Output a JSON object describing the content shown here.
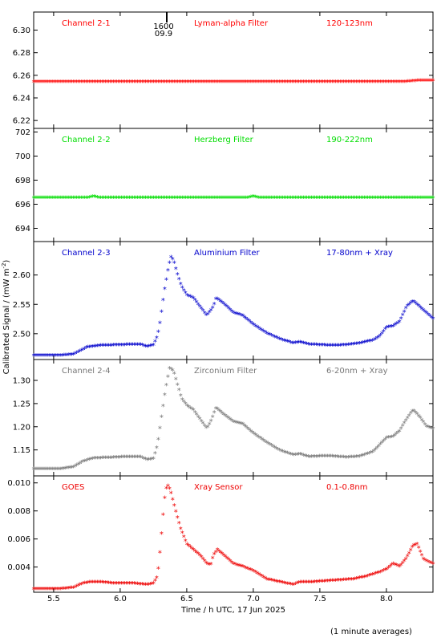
{
  "chart_data": {
    "type": "scatter",
    "x_range": [
      5.35,
      8.35
    ],
    "x_ticks": [
      "5.5",
      "6.0",
      "6.5",
      "7.0",
      "7.5",
      "8.0"
    ],
    "xlabel": "Time / h UTC, 17 Jun 2025",
    "ylabel": "Calibrated Signal / (mW m",
    "ylabel_sup": "-2",
    "ylabel_end": ")",
    "marker_label_top": "1600",
    "marker_label_bottom": "09.9",
    "marker_x": 6.35,
    "footnote": "(1 minute averages)",
    "panels": [
      {
        "channel": "Channel 2-1",
        "filter": "Lyman-alpha Filter",
        "band": "120-123nm",
        "color": "#ff0000",
        "ylim": [
          6.213,
          6.316
        ],
        "yticks": [
          "6.22",
          "6.24",
          "6.26",
          "6.28",
          "6.30"
        ],
        "series": {
          "name": "",
          "points": [
            [
              5.35,
              6.254
            ],
            [
              5.8,
              6.254
            ],
            [
              6.3,
              6.254
            ],
            [
              6.8,
              6.254
            ],
            [
              7.3,
              6.254
            ],
            [
              7.8,
              6.254
            ],
            [
              8.15,
              6.254
            ],
            [
              8.25,
              6.255
            ],
            [
              8.35,
              6.255
            ]
          ]
        }
      },
      {
        "channel": "Channel 2-2",
        "filter": "Herzberg Filter",
        "band": "190-222nm",
        "color": "#00dd00",
        "ylim": [
          692.9,
          702.3
        ],
        "yticks": [
          "694",
          "696",
          "698",
          "700",
          "702"
        ],
        "series": {
          "name": "",
          "points": [
            [
              5.35,
              696.5
            ],
            [
              5.75,
              696.5
            ],
            [
              5.8,
              696.6
            ],
            [
              5.85,
              696.5
            ],
            [
              6.5,
              696.5
            ],
            [
              6.95,
              696.5
            ],
            [
              7.0,
              696.6
            ],
            [
              7.05,
              696.5
            ],
            [
              7.6,
              696.5
            ],
            [
              8.35,
              696.5
            ]
          ]
        }
      },
      {
        "channel": "Channel 2-3",
        "filter": "Aluminium Filter",
        "band": "17-80nm + Xray",
        "color": "#0000cc",
        "ylim": [
          2.456,
          2.657
        ],
        "yticks": [
          "2.50",
          "2.55",
          "2.60"
        ],
        "series": {
          "name": "",
          "points": [
            [
              5.35,
              2.462
            ],
            [
              5.55,
              2.462
            ],
            [
              5.65,
              2.464
            ],
            [
              5.7,
              2.47
            ],
            [
              5.75,
              2.476
            ],
            [
              5.85,
              2.479
            ],
            [
              6.0,
              2.48
            ],
            [
              6.15,
              2.481
            ],
            [
              6.2,
              2.477
            ],
            [
              6.25,
              2.48
            ],
            [
              6.28,
              2.495
            ],
            [
              6.3,
              2.52
            ],
            [
              6.33,
              2.57
            ],
            [
              6.36,
              2.61
            ],
            [
              6.38,
              2.63
            ],
            [
              6.4,
              2.625
            ],
            [
              6.43,
              2.6
            ],
            [
              6.46,
              2.58
            ],
            [
              6.5,
              2.565
            ],
            [
              6.55,
              2.56
            ],
            [
              6.6,
              2.545
            ],
            [
              6.65,
              2.53
            ],
            [
              6.7,
              2.545
            ],
            [
              6.72,
              2.56
            ],
            [
              6.78,
              2.55
            ],
            [
              6.85,
              2.535
            ],
            [
              6.92,
              2.53
            ],
            [
              7.0,
              2.515
            ],
            [
              7.1,
              2.5
            ],
            [
              7.2,
              2.49
            ],
            [
              7.3,
              2.483
            ],
            [
              7.35,
              2.485
            ],
            [
              7.42,
              2.481
            ],
            [
              7.5,
              2.48
            ],
            [
              7.6,
              2.479
            ],
            [
              7.7,
              2.48
            ],
            [
              7.8,
              2.483
            ],
            [
              7.9,
              2.488
            ],
            [
              7.95,
              2.495
            ],
            [
              8.0,
              2.51
            ],
            [
              8.05,
              2.512
            ],
            [
              8.1,
              2.52
            ],
            [
              8.15,
              2.545
            ],
            [
              8.2,
              2.555
            ],
            [
              8.25,
              2.545
            ],
            [
              8.3,
              2.535
            ],
            [
              8.35,
              2.525
            ]
          ]
        }
      },
      {
        "channel": "Channel 2-4",
        "filter": "Zirconium Filter",
        "band": "6-20nm + Xray",
        "color": "#777777",
        "ylim": [
          1.094,
          1.345
        ],
        "yticks": [
          "1.15",
          "1.20",
          "1.25",
          "1.30"
        ],
        "series": {
          "name": "",
          "points": [
            [
              5.35,
              1.108
            ],
            [
              5.55,
              1.108
            ],
            [
              5.65,
              1.112
            ],
            [
              5.72,
              1.124
            ],
            [
              5.8,
              1.131
            ],
            [
              5.9,
              1.132
            ],
            [
              6.05,
              1.134
            ],
            [
              6.15,
              1.134
            ],
            [
              6.2,
              1.128
            ],
            [
              6.25,
              1.13
            ],
            [
              6.28,
              1.16
            ],
            [
              6.31,
              1.22
            ],
            [
              6.34,
              1.28
            ],
            [
              6.37,
              1.325
            ],
            [
              6.4,
              1.32
            ],
            [
              6.43,
              1.29
            ],
            [
              6.46,
              1.26
            ],
            [
              6.5,
              1.245
            ],
            [
              6.55,
              1.235
            ],
            [
              6.6,
              1.215
            ],
            [
              6.65,
              1.195
            ],
            [
              6.68,
              1.21
            ],
            [
              6.72,
              1.24
            ],
            [
              6.78,
              1.225
            ],
            [
              6.85,
              1.21
            ],
            [
              6.92,
              1.205
            ],
            [
              7.0,
              1.185
            ],
            [
              7.1,
              1.165
            ],
            [
              7.2,
              1.148
            ],
            [
              7.3,
              1.138
            ],
            [
              7.35,
              1.14
            ],
            [
              7.42,
              1.134
            ],
            [
              7.55,
              1.136
            ],
            [
              7.7,
              1.133
            ],
            [
              7.8,
              1.135
            ],
            [
              7.9,
              1.145
            ],
            [
              7.95,
              1.16
            ],
            [
              8.0,
              1.175
            ],
            [
              8.05,
              1.178
            ],
            [
              8.1,
              1.19
            ],
            [
              8.15,
              1.215
            ],
            [
              8.2,
              1.235
            ],
            [
              8.25,
              1.22
            ],
            [
              8.3,
              1.2
            ],
            [
              8.35,
              1.195
            ]
          ]
        }
      },
      {
        "channel": "GOES",
        "filter": "Xray Sensor",
        "band": "0.1-0.8nm",
        "color": "#ee0000",
        "ylim": [
          0.0022,
          0.0105
        ],
        "yticks": [
          "0.004",
          "0.006",
          "0.008",
          "0.010"
        ],
        "series": {
          "name": "",
          "points": [
            [
              5.35,
              0.0024
            ],
            [
              5.55,
              0.0024
            ],
            [
              5.65,
              0.0025
            ],
            [
              5.72,
              0.0028
            ],
            [
              5.78,
              0.0029
            ],
            [
              5.85,
              0.0029
            ],
            [
              5.95,
              0.0028
            ],
            [
              6.1,
              0.0028
            ],
            [
              6.2,
              0.0027
            ],
            [
              6.25,
              0.0028
            ],
            [
              6.28,
              0.0033
            ],
            [
              6.3,
              0.0052
            ],
            [
              6.32,
              0.0075
            ],
            [
              6.34,
              0.0095
            ],
            [
              6.36,
              0.0098
            ],
            [
              6.38,
              0.0093
            ],
            [
              6.41,
              0.0082
            ],
            [
              6.45,
              0.0068
            ],
            [
              6.5,
              0.0056
            ],
            [
              6.55,
              0.0052
            ],
            [
              6.6,
              0.0048
            ],
            [
              6.65,
              0.0042
            ],
            [
              6.68,
              0.0041
            ],
            [
              6.7,
              0.0048
            ],
            [
              6.73,
              0.0052
            ],
            [
              6.78,
              0.0048
            ],
            [
              6.85,
              0.0042
            ],
            [
              6.92,
              0.004
            ],
            [
              7.0,
              0.0037
            ],
            [
              7.1,
              0.0031
            ],
            [
              7.2,
              0.0029
            ],
            [
              7.3,
              0.0027
            ],
            [
              7.35,
              0.0029
            ],
            [
              7.45,
              0.0029
            ],
            [
              7.6,
              0.003
            ],
            [
              7.75,
              0.0031
            ],
            [
              7.85,
              0.0033
            ],
            [
              7.95,
              0.0036
            ],
            [
              8.0,
              0.0038
            ],
            [
              8.05,
              0.0042
            ],
            [
              8.1,
              0.004
            ],
            [
              8.15,
              0.0046
            ],
            [
              8.2,
              0.0055
            ],
            [
              8.23,
              0.0056
            ],
            [
              8.28,
              0.0045
            ],
            [
              8.35,
              0.0042
            ]
          ]
        }
      }
    ]
  }
}
